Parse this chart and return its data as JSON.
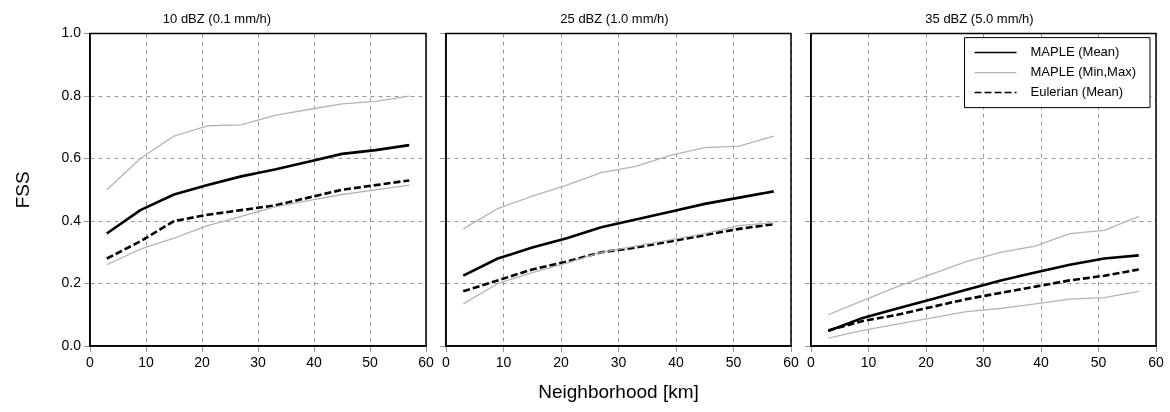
{
  "chart_data": [
    {
      "type": "line",
      "title": "10 dBZ (0.1 mm/h)",
      "ylabel": "FSS",
      "x": [
        3,
        9,
        15,
        21,
        27,
        33,
        39,
        45,
        51,
        57
      ],
      "xlim": [
        0,
        60
      ],
      "xticks": [
        0,
        10,
        20,
        30,
        40,
        50,
        60
      ],
      "ylim": [
        0,
        1
      ],
      "yticks": [
        {
          "value": 0,
          "label": "0.0"
        },
        {
          "value": 0.2,
          "label": "0.2"
        },
        {
          "value": 0.4,
          "label": "0.4"
        },
        {
          "value": 0.6,
          "label": "0.6"
        },
        {
          "value": 0.8,
          "label": "0.8"
        },
        {
          "value": 1,
          "label": "1.0"
        }
      ],
      "grid": true,
      "legend": false,
      "marker": "none",
      "series": [
        {
          "color": "#000000",
          "values": [
            0.36,
            0.435,
            0.485,
            0.515,
            0.543,
            0.565,
            0.59,
            0.615,
            0.627,
            0.643
          ]
        },
        {
          "color": "#b4b4b4",
          "values": [
            0.5,
            0.6,
            0.672,
            0.705,
            0.708,
            0.738,
            0.757,
            0.775,
            0.783,
            0.8
          ]
        },
        {
          "color": "#b4b4b4",
          "values": [
            0.26,
            0.31,
            0.345,
            0.385,
            0.415,
            0.445,
            0.465,
            0.485,
            0.5,
            0.515
          ]
        },
        {
          "color": "#000000",
          "line_style": "dashed",
          "values": [
            0.28,
            0.335,
            0.4,
            0.42,
            0.435,
            0.45,
            0.475,
            0.5,
            0.515,
            0.53
          ]
        }
      ]
    },
    {
      "type": "line",
      "title": "25 dBZ (1.0 mm/h)",
      "xlabel": "Neighborhood [km]",
      "x": [
        3,
        9,
        15,
        21,
        27,
        33,
        39,
        45,
        51,
        57
      ],
      "xlim": [
        0,
        60
      ],
      "xticks": [
        0,
        10,
        20,
        30,
        40,
        50,
        60
      ],
      "ylim": [
        0,
        1
      ],
      "yticks": [
        0,
        0.2,
        0.4,
        0.6,
        0.8,
        1
      ],
      "tick_labels": "x",
      "grid": true,
      "legend": false,
      "marker": "none",
      "series": [
        {
          "color": "#000000",
          "values": [
            0.225,
            0.28,
            0.315,
            0.345,
            0.38,
            0.405,
            0.43,
            0.455,
            0.475,
            0.495
          ]
        },
        {
          "color": "#b4b4b4",
          "values": [
            0.375,
            0.44,
            0.48,
            0.515,
            0.555,
            0.575,
            0.61,
            0.635,
            0.64,
            0.672
          ]
        },
        {
          "color": "#b4b4b4",
          "values": [
            0.135,
            0.2,
            0.235,
            0.265,
            0.3,
            0.32,
            0.34,
            0.36,
            0.385,
            0.395
          ]
        },
        {
          "color": "#000000",
          "line_style": "dashed",
          "values": [
            0.175,
            0.21,
            0.245,
            0.27,
            0.3,
            0.315,
            0.335,
            0.355,
            0.375,
            0.39
          ]
        }
      ]
    },
    {
      "type": "line",
      "title": "35 dBZ (5.0 mm/h)",
      "x": [
        3,
        9,
        15,
        21,
        27,
        33,
        39,
        45,
        51,
        57
      ],
      "xlim": [
        0,
        60
      ],
      "xticks": [
        0,
        10,
        20,
        30,
        40,
        50,
        60
      ],
      "ylim": [
        0,
        1
      ],
      "yticks": [
        0,
        0.2,
        0.4,
        0.6,
        0.8,
        1
      ],
      "tick_labels": "x",
      "grid": true,
      "legend": "top right",
      "marker": "none",
      "series": [
        {
          "name": "MAPLE (Mean)",
          "color": "#000000",
          "values": [
            0.048,
            0.09,
            0.12,
            0.15,
            0.18,
            0.21,
            0.235,
            0.26,
            0.28,
            0.29
          ]
        },
        {
          "name": "MAPLE (Min,Max)",
          "color": "#b4b4b4",
          "values": [
            0.1,
            0.145,
            0.19,
            0.23,
            0.27,
            0.3,
            0.32,
            0.36,
            0.37,
            0.415
          ]
        },
        {
          "color": "#b4b4b4",
          "values": [
            0.025,
            0.05,
            0.07,
            0.09,
            0.11,
            0.12,
            0.135,
            0.15,
            0.155,
            0.175
          ]
        },
        {
          "name": "Eulerian (Mean)",
          "color": "#000000",
          "line_style": "dashed",
          "values": [
            0.05,
            0.08,
            0.1,
            0.125,
            0.15,
            0.17,
            0.19,
            0.21,
            0.225,
            0.245
          ]
        }
      ]
    }
  ]
}
